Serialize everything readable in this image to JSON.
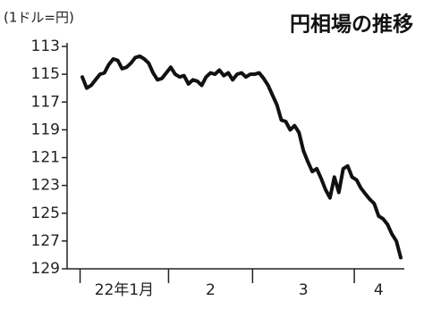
{
  "chart_data": {
    "type": "line",
    "title": "円相場の推移",
    "y_label": "(1ドル=円)",
    "categories": [
      "22年1月",
      "2",
      "3",
      "4"
    ],
    "series": [
      {
        "color": "#111111",
        "values": [
          [
            115.2,
            116.0,
            115.8,
            115.4,
            115.0,
            114.9,
            114.3,
            113.9,
            114.0,
            114.6,
            114.5,
            114.2,
            113.8,
            113.7,
            113.9,
            114.2,
            114.9,
            115.4,
            115.3,
            114.9
          ],
          [
            114.5,
            115.0,
            115.2,
            115.1,
            115.7,
            115.4,
            115.5,
            115.8,
            115.2,
            114.9,
            115.0,
            114.7,
            115.1,
            114.9,
            115.4,
            115.0,
            114.9,
            115.2,
            115.0
          ],
          [
            115.0,
            114.9,
            115.3,
            115.8,
            116.5,
            117.2,
            118.3,
            118.4,
            119.0,
            118.7,
            119.2,
            120.5,
            121.3,
            122.0,
            121.8,
            122.5,
            123.3,
            123.9,
            122.4,
            123.5,
            121.8,
            121.6,
            122.4
          ],
          [
            122.6,
            123.2,
            123.6,
            124.0,
            124.3,
            125.2,
            125.4,
            125.8,
            126.5,
            127.0,
            128.2
          ]
        ]
      }
    ],
    "ylim": [
      113,
      129
    ],
    "yticks": [
      113,
      115,
      117,
      119,
      121,
      123,
      125,
      127,
      129
    ],
    "y_inverted": true
  }
}
